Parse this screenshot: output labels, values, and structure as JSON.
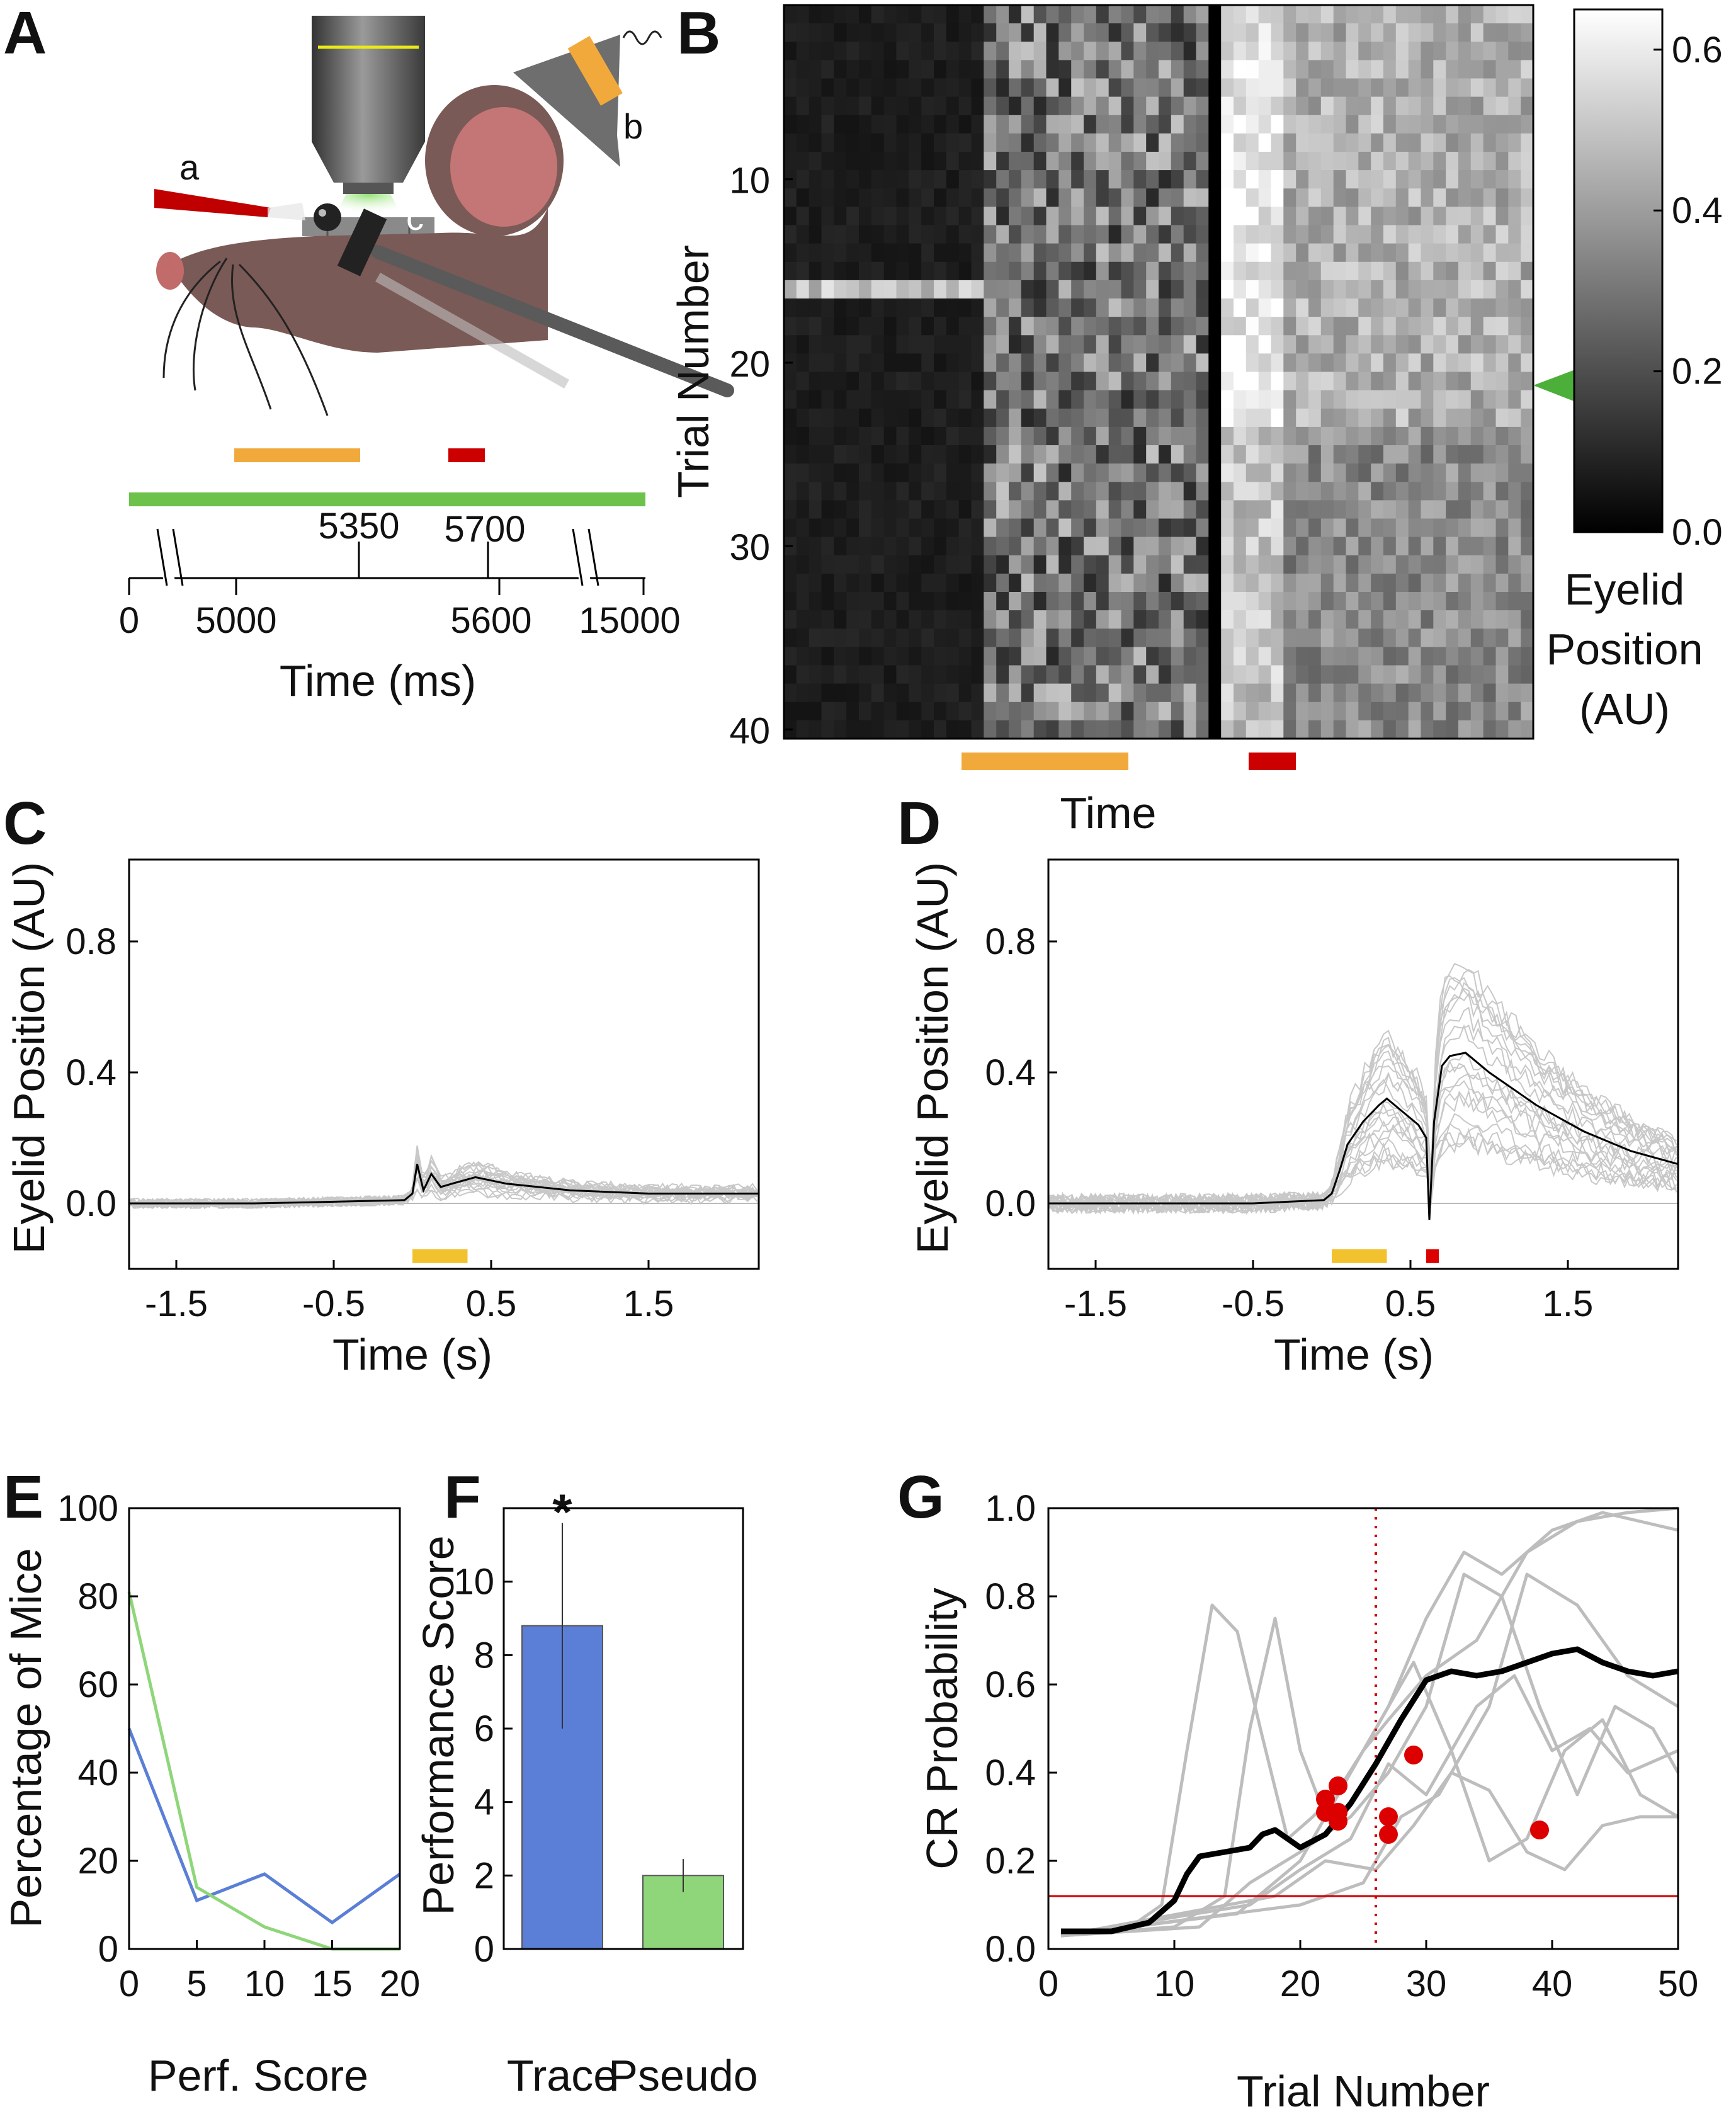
{
  "panel_labels": [
    "A",
    "B",
    "C",
    "D",
    "E",
    "F",
    "G"
  ],
  "panel_a": {
    "part_labels": [
      "a",
      "b",
      "c"
    ],
    "timeline_marks_top": [
      "5350",
      "5700"
    ],
    "timeline_marks_bottom": [
      "0",
      "5000",
      "5600",
      "15000"
    ],
    "xlabel": "Time (ms)",
    "colors": {
      "cs": "#f2a93b",
      "us": "#cc0000",
      "imaging": "#6cc24a"
    }
  },
  "chart_data": [
    {
      "id": "B",
      "type": "heatmap",
      "ylabel": "Trial Number",
      "xlabel": "Time",
      "y_ticks": [
        "10",
        "20",
        "30",
        "40"
      ],
      "colorbar_ticks": [
        "0.6",
        "0.4",
        "0.2",
        "0.0"
      ],
      "colorbar_label": [
        "Eyelid",
        "Position",
        "(AU)"
      ],
      "colorbar_range": [
        0,
        0.65
      ],
      "n_trials": 40,
      "marked_trial": 21,
      "colormap": "gray"
    },
    {
      "id": "C",
      "type": "line",
      "ylabel": "Eyelid Position (AU)",
      "xlabel": "Time (s)",
      "x_ticks": [
        "-1.5",
        "-0.5",
        "0.5",
        "1.5"
      ],
      "y_ticks": [
        "0.8",
        "0.4",
        "0.0"
      ],
      "xlim": [
        -1.8,
        2.2
      ],
      "ylim": [
        -0.2,
        1.05
      ],
      "cs_interval": [
        0.0,
        0.35
      ],
      "mean_trace": {
        "x": [
          -1.8,
          -1.0,
          -0.5,
          -0.05,
          0.0,
          0.03,
          0.07,
          0.12,
          0.18,
          0.25,
          0.4,
          0.6,
          1.0,
          1.5,
          2.0,
          2.2
        ],
        "y": [
          0.0,
          0.0,
          0.005,
          0.01,
          0.03,
          0.12,
          0.04,
          0.09,
          0.05,
          0.06,
          0.08,
          0.06,
          0.04,
          0.03,
          0.03,
          0.03
        ]
      }
    },
    {
      "id": "D",
      "type": "line",
      "ylabel": "Eyelid Position (AU)",
      "xlabel": "Time (s)",
      "x_ticks": [
        "-1.5",
        "-0.5",
        "0.5",
        "1.5"
      ],
      "y_ticks": [
        "0.8",
        "0.4",
        "0.0"
      ],
      "xlim": [
        -1.8,
        2.2
      ],
      "ylim": [
        -0.2,
        1.05
      ],
      "cs_interval": [
        0.0,
        0.35
      ],
      "us_interval": [
        0.6,
        0.68
      ],
      "mean_trace": {
        "x": [
          -1.8,
          -1.0,
          -0.5,
          -0.05,
          0.0,
          0.05,
          0.1,
          0.2,
          0.3,
          0.35,
          0.45,
          0.55,
          0.6,
          0.62,
          0.65,
          0.7,
          0.75,
          0.85,
          1.0,
          1.3,
          1.6,
          1.9,
          2.2
        ],
        "y": [
          0.0,
          0.0,
          0.0,
          0.01,
          0.03,
          0.1,
          0.18,
          0.25,
          0.3,
          0.32,
          0.28,
          0.24,
          0.2,
          -0.05,
          0.25,
          0.42,
          0.45,
          0.46,
          0.4,
          0.3,
          0.22,
          0.16,
          0.12
        ]
      }
    },
    {
      "id": "E",
      "type": "line",
      "ylabel": "Percentage of  Mice",
      "xlabel": "Perf. Score",
      "x_ticks": [
        "0",
        "5",
        "10",
        "15",
        "20"
      ],
      "y_ticks": [
        "0",
        "20",
        "40",
        "60",
        "80",
        "100"
      ],
      "xlim": [
        0,
        20
      ],
      "ylim": [
        0,
        100
      ],
      "x": [
        0,
        5,
        10,
        15,
        20
      ],
      "series": [
        {
          "name": "Trace",
          "color": "#5b7fd6",
          "values": [
            50,
            11,
            17,
            6,
            17
          ]
        },
        {
          "name": "Pseudo",
          "color": "#8fd67a",
          "values": [
            81,
            14,
            5,
            0,
            0
          ]
        }
      ]
    },
    {
      "id": "F",
      "type": "bar",
      "ylabel": "Performance Score",
      "categories": [
        "Trace",
        "Pseudo"
      ],
      "values": [
        8.8,
        2.0
      ],
      "errors": [
        2.8,
        0.45
      ],
      "colors": [
        "#5b7fd6",
        "#8fd67a"
      ],
      "y_ticks": [
        "0",
        "2",
        "4",
        "6",
        "8",
        "10"
      ],
      "ylim": [
        0,
        12
      ],
      "significance": "*"
    },
    {
      "id": "G",
      "type": "line",
      "ylabel": "CR Probability",
      "xlabel": "Trial Number",
      "x_ticks": [
        "0",
        "10",
        "20",
        "30",
        "40",
        "50"
      ],
      "y_ticks": [
        "0.0",
        "0.2",
        "0.4",
        "0.6",
        "0.8",
        "1.0"
      ],
      "xlim": [
        0,
        50
      ],
      "ylim": [
        0,
        1
      ],
      "threshold_y": 0.12,
      "criterion_x": 26,
      "mean_series": {
        "x": [
          1,
          5,
          8,
          10,
          11,
          12,
          14,
          16,
          17,
          18,
          19,
          20,
          22,
          24,
          26,
          28,
          30,
          32,
          34,
          36,
          38,
          40,
          42,
          44,
          46,
          48,
          50
        ],
        "y": [
          0.04,
          0.04,
          0.06,
          0.11,
          0.17,
          0.21,
          0.22,
          0.23,
          0.26,
          0.27,
          0.25,
          0.23,
          0.26,
          0.33,
          0.42,
          0.52,
          0.61,
          0.63,
          0.62,
          0.63,
          0.65,
          0.67,
          0.68,
          0.65,
          0.63,
          0.62,
          0.63
        ]
      },
      "individual_series": [
        {
          "x": [
            1,
            6,
            9,
            11,
            13,
            15,
            17,
            19,
            21,
            23,
            25,
            27,
            30,
            34,
            38,
            42,
            46,
            50
          ],
          "y": [
            0.03,
            0.04,
            0.1,
            0.45,
            0.78,
            0.72,
            0.48,
            0.25,
            0.3,
            0.36,
            0.45,
            0.52,
            0.62,
            0.7,
            0.9,
            0.97,
            0.99,
            1.0
          ]
        },
        {
          "x": [
            1,
            10,
            14,
            16,
            18,
            20,
            22,
            24,
            27,
            30,
            33,
            36,
            40,
            44,
            47,
            50
          ],
          "y": [
            0.03,
            0.05,
            0.12,
            0.5,
            0.75,
            0.45,
            0.3,
            0.4,
            0.55,
            0.75,
            0.9,
            0.85,
            0.95,
            0.99,
            0.97,
            0.95
          ]
        },
        {
          "x": [
            1,
            12,
            16,
            20,
            24,
            27,
            30,
            33,
            36,
            39,
            42,
            45,
            48,
            50
          ],
          "y": [
            0.03,
            0.05,
            0.15,
            0.22,
            0.3,
            0.4,
            0.55,
            0.85,
            0.8,
            0.55,
            0.35,
            0.55,
            0.5,
            0.4
          ]
        },
        {
          "x": [
            1,
            15,
            20,
            23,
            26,
            29,
            32,
            35,
            38,
            41,
            44,
            47,
            50
          ],
          "y": [
            0.03,
            0.08,
            0.2,
            0.35,
            0.5,
            0.65,
            0.45,
            0.2,
            0.25,
            0.45,
            0.52,
            0.35,
            0.3
          ]
        },
        {
          "x": [
            1,
            16,
            20,
            24,
            27,
            30,
            34,
            37,
            40,
            43,
            46,
            50
          ],
          "y": [
            0.03,
            0.1,
            0.18,
            0.25,
            0.42,
            0.35,
            0.55,
            0.62,
            0.45,
            0.5,
            0.4,
            0.45
          ]
        },
        {
          "x": [
            1,
            18,
            22,
            26,
            29,
            32,
            35,
            38,
            41,
            44,
            47,
            50
          ],
          "y": [
            0.03,
            0.12,
            0.2,
            0.18,
            0.28,
            0.4,
            0.36,
            0.22,
            0.18,
            0.28,
            0.3,
            0.3
          ]
        },
        {
          "x": [
            1,
            20,
            25,
            28,
            31,
            35,
            38,
            42,
            46,
            50
          ],
          "y": [
            0.03,
            0.1,
            0.15,
            0.3,
            0.35,
            0.55,
            0.85,
            0.78,
            0.62,
            0.55
          ]
        }
      ],
      "criterion_points": {
        "x": [
          22,
          22,
          23,
          23,
          23,
          27,
          27,
          29,
          39
        ],
        "y": [
          0.34,
          0.31,
          0.37,
          0.31,
          0.29,
          0.3,
          0.26,
          0.44,
          0.27
        ]
      }
    }
  ]
}
